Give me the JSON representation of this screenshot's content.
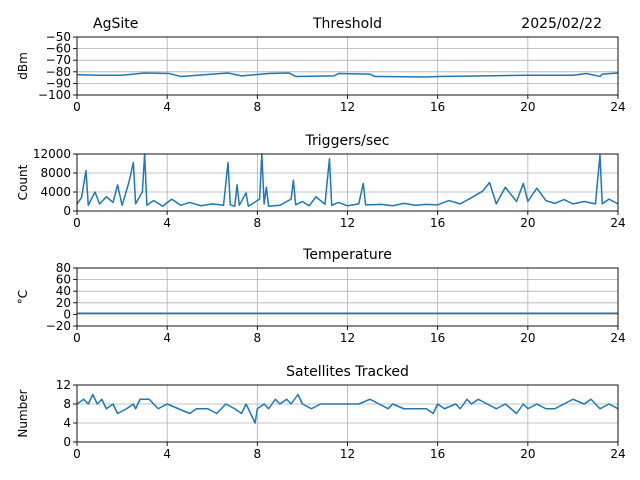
{
  "header": {
    "site": "AgSite",
    "date": "2025/02/22"
  },
  "colors": {
    "line": "#1f77b4",
    "grid": "#b0b0b0",
    "axes": "#000000"
  },
  "chart_data": [
    {
      "type": "line",
      "title": "Threshold",
      "ylabel": "dBm",
      "xlim": [
        0,
        24
      ],
      "ylim": [
        -100,
        -50
      ],
      "xticks": [
        0,
        4,
        8,
        12,
        16,
        20,
        24
      ],
      "yticks": [
        -100,
        -90,
        -80,
        -70,
        -60,
        -50
      ],
      "grid": true,
      "series": [
        {
          "values_xy": [
            [
              0,
              -82.5
            ],
            [
              1,
              -83
            ],
            [
              2,
              -83
            ],
            [
              3,
              -81
            ],
            [
              4.1,
              -81.5
            ],
            [
              4.6,
              -84
            ],
            [
              6.7,
              -81
            ],
            [
              7.3,
              -83.5
            ],
            [
              8.5,
              -81.5
            ],
            [
              9.4,
              -81
            ],
            [
              9.7,
              -84
            ],
            [
              11.4,
              -83.5
            ],
            [
              11.6,
              -81.5
            ],
            [
              13,
              -82
            ],
            [
              13.2,
              -84
            ],
            [
              15.5,
              -84.5
            ],
            [
              16,
              -84
            ],
            [
              18,
              -83.5
            ],
            [
              20,
              -83
            ],
            [
              22,
              -83
            ],
            [
              22.6,
              -81.5
            ],
            [
              23.2,
              -84
            ],
            [
              23.3,
              -82
            ],
            [
              24,
              -81
            ]
          ]
        }
      ]
    },
    {
      "type": "line",
      "title": "Triggers/sec",
      "ylabel": "Count",
      "xlim": [
        0,
        24
      ],
      "ylim": [
        0,
        12000
      ],
      "xticks": [
        0,
        4,
        8,
        12,
        16,
        20,
        24
      ],
      "yticks": [
        0,
        4000,
        8000,
        12000
      ],
      "grid": true,
      "series": [
        {
          "values_xy": [
            [
              0,
              1500
            ],
            [
              0.2,
              2800
            ],
            [
              0.4,
              8500
            ],
            [
              0.5,
              1200
            ],
            [
              0.8,
              4000
            ],
            [
              1,
              1500
            ],
            [
              1.3,
              3000
            ],
            [
              1.6,
              1800
            ],
            [
              1.8,
              5500
            ],
            [
              2.0,
              1200
            ],
            [
              2.3,
              6000
            ],
            [
              2.5,
              10200
            ],
            [
              2.6,
              1500
            ],
            [
              2.9,
              4000
            ],
            [
              3.0,
              12000
            ],
            [
              3.1,
              1200
            ],
            [
              3.4,
              2200
            ],
            [
              3.8,
              1000
            ],
            [
              4.2,
              2500
            ],
            [
              4.6,
              1200
            ],
            [
              5,
              1800
            ],
            [
              5.5,
              1100
            ],
            [
              6,
              1500
            ],
            [
              6.5,
              1200
            ],
            [
              6.7,
              10200
            ],
            [
              6.8,
              1300
            ],
            [
              7.0,
              1000
            ],
            [
              7.1,
              5500
            ],
            [
              7.2,
              1200
            ],
            [
              7.5,
              3800
            ],
            [
              7.6,
              1000
            ],
            [
              8.1,
              2500
            ],
            [
              8.2,
              12000
            ],
            [
              8.3,
              1500
            ],
            [
              8.4,
              5000
            ],
            [
              8.5,
              1000
            ],
            [
              9,
              1200
            ],
            [
              9.5,
              2500
            ],
            [
              9.6,
              6500
            ],
            [
              9.7,
              1300
            ],
            [
              10,
              2000
            ],
            [
              10.3,
              1100
            ],
            [
              10.6,
              3000
            ],
            [
              11,
              1400
            ],
            [
              11.2,
              11000
            ],
            [
              11.3,
              1200
            ],
            [
              11.6,
              1800
            ],
            [
              12,
              1100
            ],
            [
              12.5,
              1500
            ],
            [
              12.7,
              5800
            ],
            [
              12.8,
              1300
            ],
            [
              13.5,
              1400
            ],
            [
              14,
              1100
            ],
            [
              14.5,
              1600
            ],
            [
              15,
              1200
            ],
            [
              15.5,
              1400
            ],
            [
              16,
              1300
            ],
            [
              16.5,
              2200
            ],
            [
              17,
              1500
            ],
            [
              17.5,
              2800
            ],
            [
              18,
              4200
            ],
            [
              18.3,
              6000
            ],
            [
              18.6,
              1500
            ],
            [
              19,
              5000
            ],
            [
              19.5,
              2000
            ],
            [
              19.8,
              5800
            ],
            [
              20,
              2000
            ],
            [
              20.4,
              4800
            ],
            [
              20.8,
              2200
            ],
            [
              21.2,
              1600
            ],
            [
              21.6,
              2400
            ],
            [
              22,
              1500
            ],
            [
              22.5,
              2000
            ],
            [
              23,
              1500
            ],
            [
              23.2,
              11800
            ],
            [
              23.3,
              1500
            ],
            [
              23.6,
              2500
            ],
            [
              24,
              1500
            ]
          ]
        }
      ]
    },
    {
      "type": "line",
      "title": "Temperature",
      "ylabel": "°C",
      "xlim": [
        0,
        24
      ],
      "ylim": [
        -20,
        80
      ],
      "xticks": [
        0,
        4,
        8,
        12,
        16,
        20,
        24
      ],
      "yticks": [
        -20,
        0,
        20,
        40,
        60,
        80
      ],
      "grid": true,
      "series": [
        {
          "values_xy": [
            [
              0,
              2
            ],
            [
              24,
              2
            ]
          ]
        }
      ]
    },
    {
      "type": "line",
      "title": "Satellites Tracked",
      "ylabel": "Number",
      "xlim": [
        0,
        24
      ],
      "ylim": [
        0,
        12
      ],
      "xticks": [
        0,
        4,
        8,
        12,
        16,
        20,
        24
      ],
      "yticks": [
        0,
        4,
        8,
        12
      ],
      "grid": true,
      "series": [
        {
          "values_xy": [
            [
              0,
              8
            ],
            [
              0.3,
              9
            ],
            [
              0.5,
              8
            ],
            [
              0.7,
              10
            ],
            [
              0.9,
              8
            ],
            [
              1.1,
              9
            ],
            [
              1.3,
              7
            ],
            [
              1.6,
              8
            ],
            [
              1.8,
              6
            ],
            [
              2.2,
              7
            ],
            [
              2.5,
              8
            ],
            [
              2.6,
              7
            ],
            [
              2.8,
              9
            ],
            [
              3.2,
              9
            ],
            [
              3.4,
              8
            ],
            [
              3.6,
              7
            ],
            [
              4.0,
              8
            ],
            [
              4.5,
              7
            ],
            [
              5.0,
              6
            ],
            [
              5.3,
              7
            ],
            [
              5.8,
              7
            ],
            [
              6.2,
              6
            ],
            [
              6.6,
              8
            ],
            [
              7.0,
              7
            ],
            [
              7.3,
              6
            ],
            [
              7.5,
              8
            ],
            [
              7.8,
              5
            ],
            [
              7.9,
              4
            ],
            [
              8.0,
              7
            ],
            [
              8.3,
              8
            ],
            [
              8.5,
              7
            ],
            [
              8.8,
              9
            ],
            [
              9.0,
              8
            ],
            [
              9.3,
              9
            ],
            [
              9.5,
              8
            ],
            [
              9.8,
              10
            ],
            [
              10.0,
              8
            ],
            [
              10.4,
              7
            ],
            [
              10.8,
              8
            ],
            [
              11.3,
              8
            ],
            [
              11.6,
              8
            ],
            [
              12.0,
              8
            ],
            [
              12.5,
              8
            ],
            [
              13.0,
              9
            ],
            [
              13.4,
              8
            ],
            [
              13.8,
              7
            ],
            [
              14.0,
              8
            ],
            [
              14.5,
              7
            ],
            [
              15.0,
              7
            ],
            [
              15.5,
              7
            ],
            [
              15.8,
              6
            ],
            [
              16.0,
              8
            ],
            [
              16.3,
              7
            ],
            [
              16.8,
              8
            ],
            [
              17.0,
              7
            ],
            [
              17.3,
              9
            ],
            [
              17.5,
              8
            ],
            [
              17.8,
              9
            ],
            [
              18.2,
              8
            ],
            [
              18.6,
              7
            ],
            [
              19.0,
              8
            ],
            [
              19.5,
              6
            ],
            [
              19.8,
              8
            ],
            [
              20.0,
              7
            ],
            [
              20.4,
              8
            ],
            [
              20.8,
              7
            ],
            [
              21.2,
              7
            ],
            [
              21.6,
              8
            ],
            [
              22.0,
              9
            ],
            [
              22.5,
              8
            ],
            [
              22.8,
              9
            ],
            [
              23.2,
              7
            ],
            [
              23.6,
              8
            ],
            [
              24.0,
              7
            ]
          ]
        }
      ]
    }
  ]
}
